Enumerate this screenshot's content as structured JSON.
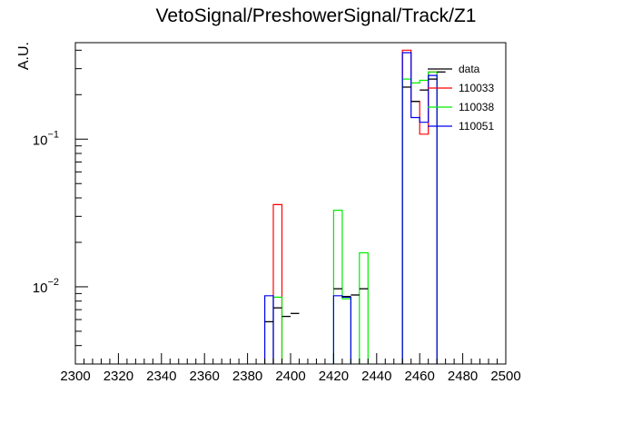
{
  "chart_data": {
    "type": "histogram",
    "title": "VetoSignal/PreshowerSignal/Track/Z1",
    "ylabel": "A.U.",
    "xlabel": "",
    "xlim": [
      2300,
      2500
    ],
    "ylim": [
      0.003,
      0.45
    ],
    "yscale": "log",
    "grid": false,
    "legend_position": "top-right",
    "x_ticks": [
      2300,
      2320,
      2340,
      2360,
      2380,
      2400,
      2420,
      2440,
      2460,
      2480,
      2500
    ],
    "x_tick_labels": [
      "2300",
      "2320",
      "2340",
      "2360",
      "2380",
      "2400",
      "2420",
      "2440",
      "2460",
      "2480",
      "2500"
    ],
    "y_tick_labels": [
      {
        "value": 0.01,
        "base": "10",
        "exp": "−2"
      },
      {
        "value": 0.1,
        "base": "10",
        "exp": "−1"
      }
    ],
    "bin_width": 4,
    "series": [
      {
        "name": "data",
        "color": "#000000",
        "style": "markers",
        "bins": [
          {
            "x": 2390,
            "y": 0.0058
          },
          {
            "x": 2394,
            "y": 0.0072
          },
          {
            "x": 2398,
            "y": 0.0063
          },
          {
            "x": 2402,
            "y": 0.0066
          },
          {
            "x": 2422,
            "y": 0.0097
          },
          {
            "x": 2426,
            "y": 0.0086
          },
          {
            "x": 2430,
            "y": 0.0088
          },
          {
            "x": 2434,
            "y": 0.0097
          },
          {
            "x": 2454,
            "y": 0.225
          },
          {
            "x": 2458,
            "y": 0.18
          },
          {
            "x": 2462,
            "y": 0.215
          },
          {
            "x": 2466,
            "y": 0.255
          },
          {
            "x": 2470,
            "y": 0.285
          }
        ]
      },
      {
        "name": "110033",
        "color": "#ff0000",
        "style": "step",
        "bins": [
          {
            "x": 2394,
            "y": 0.036
          },
          {
            "x": 2454,
            "y": 0.4
          },
          {
            "x": 2458,
            "y": 0.18
          },
          {
            "x": 2462,
            "y": 0.108
          },
          {
            "x": 2466,
            "y": 0.285
          }
        ]
      },
      {
        "name": "110038",
        "color": "#00ee00",
        "style": "step",
        "bins": [
          {
            "x": 2394,
            "y": 0.0085
          },
          {
            "x": 2422,
            "y": 0.033
          },
          {
            "x": 2426,
            "y": 0.0083
          },
          {
            "x": 2434,
            "y": 0.017
          },
          {
            "x": 2454,
            "y": 0.255
          },
          {
            "x": 2458,
            "y": 0.24
          },
          {
            "x": 2462,
            "y": 0.25
          },
          {
            "x": 2466,
            "y": 0.285
          }
        ]
      },
      {
        "name": "110051",
        "color": "#0000ee",
        "style": "step",
        "bins": [
          {
            "x": 2390,
            "y": 0.0087
          },
          {
            "x": 2422,
            "y": 0.0087
          },
          {
            "x": 2426,
            "y": 0.0085
          },
          {
            "x": 2454,
            "y": 0.385
          },
          {
            "x": 2458,
            "y": 0.14
          },
          {
            "x": 2462,
            "y": 0.13
          },
          {
            "x": 2466,
            "y": 0.27
          }
        ]
      }
    ]
  }
}
